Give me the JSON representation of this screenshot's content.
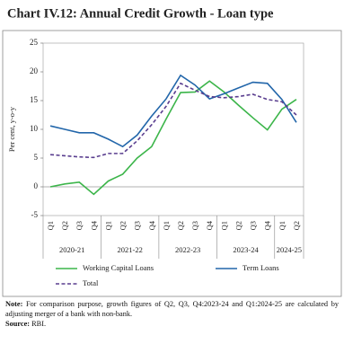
{
  "chart_data": {
    "type": "line",
    "title": "Chart IV.12: Annual Credit Growth - Loan type",
    "y_label": "Per cent, y-o-y",
    "categories": [
      "Q1",
      "Q2",
      "Q3",
      "Q4",
      "Q1",
      "Q2",
      "Q3",
      "Q4",
      "Q1",
      "Q2",
      "Q3",
      "Q4",
      "Q1",
      "Q2",
      "Q3",
      "Q4",
      "Q1",
      "Q2"
    ],
    "category_groups": [
      "2020-21",
      "2021-22",
      "2022-23",
      "2023-24",
      "2024-25"
    ],
    "series": [
      {
        "name": "Working Capital Loans",
        "color": "#3cb54a",
        "values": [
          0,
          0.5,
          0.8,
          -1.3,
          1.0,
          2.2,
          5.0,
          7.0,
          11.8,
          16.4,
          16.5,
          18.4,
          16.5,
          14.2,
          12.0,
          9.9,
          13.5,
          15.2
        ]
      },
      {
        "name": "Term Loans",
        "color": "#2266aa",
        "values": [
          10.6,
          10.0,
          9.4,
          9.4,
          8.3,
          7.0,
          9.0,
          12.3,
          15.3,
          19.4,
          17.7,
          15.3,
          16.2,
          17.2,
          18.2,
          18.0,
          15.2,
          11.2
        ]
      },
      {
        "name": "Total",
        "color": "#5a3e8f",
        "dashed": true,
        "values": [
          5.6,
          5.4,
          5.2,
          5.1,
          5.8,
          5.8,
          8.0,
          10.8,
          14.0,
          18.0,
          16.8,
          15.7,
          15.5,
          15.7,
          16.1,
          15.2,
          14.8,
          12.5
        ]
      }
    ],
    "ylim": [
      -5,
      25
    ],
    "yticks": [
      -5,
      0,
      5,
      10,
      15,
      20,
      25
    ],
    "note_label": "Note:",
    "note": "For comparison purpose, growth figures of Q2, Q3, Q4:2023-24 and Q1:2024-25 are calculated by adjusting merger of a bank with non-bank.",
    "source_label": "Source:",
    "source": "RBI."
  }
}
